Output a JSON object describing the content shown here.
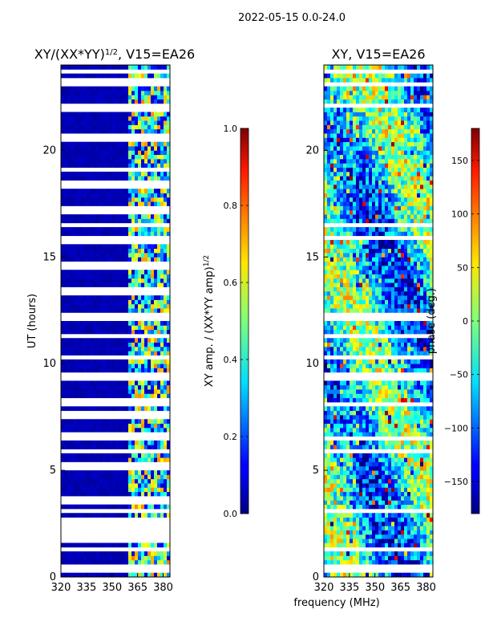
{
  "suptitle": "2022-05-15 0.0-24.0",
  "common_xlabel": "frequency (MHz)",
  "chart_data": [
    {
      "type": "heatmap",
      "title_main": "XY/(XX*YY)",
      "title_sup": "1/2",
      "title_rest": ", V15=EA26",
      "xlabel": "",
      "ylabel": "UT (hours)",
      "xlim": [
        320,
        384
      ],
      "ylim": [
        0,
        24
      ],
      "xticks": [
        320,
        335,
        350,
        365,
        380
      ],
      "yticks": [
        0,
        5,
        10,
        15,
        20
      ],
      "colorbar": {
        "label_main": "XY amp. / (XX*YY amp)",
        "label_sup": "1/2",
        "range": [
          0.0,
          1.0
        ],
        "ticks": [
          0.0,
          0.2,
          0.4,
          0.6,
          0.8,
          1.0
        ],
        "tick_labels": [
          "0.0",
          "0.2",
          "0.4",
          "0.6",
          "0.8",
          "1.0"
        ],
        "colormap": "jet"
      },
      "masked_ut_hours": [
        0.4,
        1.3,
        1.8,
        2.2,
        2.6,
        3.1,
        3.6,
        5.2,
        5.9,
        6.6,
        7.6,
        8.2,
        9.4,
        10.3,
        11.3,
        12.2,
        13.4,
        14.6,
        15.8,
        16.5,
        17.2,
        18.4,
        19.1,
        20.6,
        22.0,
        23.2,
        23.7
      ]
    },
    {
      "type": "heatmap",
      "title_main": "XY, V15=EA26",
      "xlabel": "frequency (MHz)",
      "ylabel": "",
      "xlim": [
        320,
        384
      ],
      "ylim": [
        0,
        24
      ],
      "xticks": [
        320,
        335,
        350,
        365,
        380
      ],
      "yticks": [
        0,
        5,
        10,
        15,
        20
      ],
      "colorbar": {
        "label_main": "phase (deg.)",
        "range": [
          -180,
          180
        ],
        "ticks": [
          -150,
          -100,
          -50,
          0,
          50,
          100,
          150
        ],
        "tick_labels": [
          "−150",
          "−100",
          "−50",
          "0",
          "50",
          "100",
          "150"
        ],
        "colormap": "jet"
      },
      "masked_ut_hours": [
        0.4,
        1.3,
        2.2,
        2.6,
        3.1,
        5.9,
        6.6,
        8.2,
        9.4,
        10.3,
        11.3,
        12.2,
        15.8,
        16.5,
        18.4,
        20.6,
        22.0,
        23.2,
        23.7
      ]
    }
  ],
  "tick_labels": {
    "x": [
      "320",
      "335",
      "350",
      "365",
      "380"
    ],
    "y": [
      "0",
      "5",
      "10",
      "15",
      "20"
    ]
  },
  "colors": {
    "background": "#ffffff",
    "axis": "#000000"
  }
}
